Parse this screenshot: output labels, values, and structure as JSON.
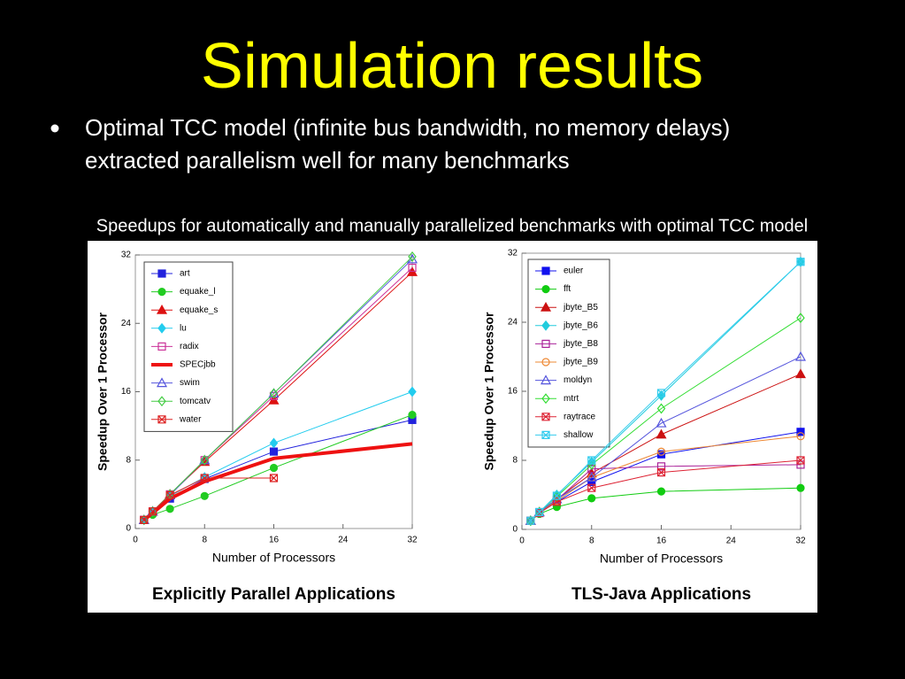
{
  "title": "Simulation results",
  "bullet": {
    "lines": [
      "Optimal TCC model (infinite bus bandwidth, no memory delays)",
      "extracted parallelism well for many benchmarks"
    ]
  },
  "caption": "Speedups for automatically and manually parallelized benchmarks with optimal TCC model",
  "chart_data": [
    {
      "type": "line",
      "title": "Explicitly Parallel Applications",
      "x_label": "Number of Processors",
      "y_label": "Speedup Over 1 Processor",
      "x": [
        1,
        2,
        4,
        8,
        16,
        32
      ],
      "xlim": [
        0,
        32
      ],
      "xticks": [
        0,
        8,
        16,
        24,
        32
      ],
      "ylim": [
        0,
        32
      ],
      "yticks": [
        0,
        8,
        16,
        24,
        32
      ],
      "series": [
        {
          "name": "art",
          "color": "#2222dd",
          "marker": "square",
          "values": [
            1,
            1.9,
            3.5,
            5.8,
            9,
            12.7
          ]
        },
        {
          "name": "equake_l",
          "color": "#22cc22",
          "marker": "circle",
          "values": [
            1,
            1.6,
            2.3,
            3.8,
            7.1,
            13.3
          ]
        },
        {
          "name": "equake_s",
          "color": "#dd1111",
          "marker": "triangle",
          "values": [
            1,
            2,
            4,
            7.8,
            15,
            30
          ]
        },
        {
          "name": "lu",
          "color": "#22ccee",
          "marker": "diamond",
          "values": [
            1,
            2,
            3.8,
            6,
            10,
            16
          ]
        },
        {
          "name": "radix",
          "color": "#cc3399",
          "marker": "square-open",
          "values": [
            1,
            2,
            4,
            8,
            15.5,
            30.5
          ]
        },
        {
          "name": "SPECjbb",
          "color": "#ee1111",
          "marker": "none",
          "width": 4,
          "values": [
            1,
            1.8,
            3.5,
            5.5,
            8.2,
            9.9
          ]
        },
        {
          "name": "swim",
          "color": "#5555dd",
          "marker": "triangle-open",
          "values": [
            1,
            2,
            3.9,
            8,
            15.8,
            31.5
          ]
        },
        {
          "name": "tomcatv",
          "color": "#44cc44",
          "marker": "diamond-open",
          "values": [
            1,
            2,
            4,
            8,
            15.8,
            31.8
          ]
        },
        {
          "name": "water",
          "color": "#dd2222",
          "marker": "x-box",
          "values": [
            1,
            2,
            3.9,
            5.9,
            5.9,
            null
          ]
        }
      ]
    },
    {
      "type": "line",
      "title": "TLS-Java Applications",
      "x_label": "Number of Processors",
      "y_label": "Speedup Over 1 Processor",
      "x": [
        1,
        2,
        4,
        8,
        16,
        32
      ],
      "xlim": [
        0,
        32
      ],
      "xticks": [
        0,
        8,
        16,
        24,
        32
      ],
      "ylim": [
        0,
        32
      ],
      "yticks": [
        0,
        8,
        16,
        24,
        32
      ],
      "series": [
        {
          "name": "euler",
          "color": "#1111ee",
          "marker": "square",
          "values": [
            1,
            1.9,
            3.2,
            5.5,
            8.7,
            11.3
          ]
        },
        {
          "name": "fft",
          "color": "#11cc11",
          "marker": "circle",
          "values": [
            1,
            1.8,
            2.6,
            3.6,
            4.4,
            4.8
          ]
        },
        {
          "name": "jbyte_B5",
          "color": "#cc1111",
          "marker": "triangle",
          "values": [
            1,
            2,
            3.5,
            6.5,
            11,
            18
          ]
        },
        {
          "name": "jbyte_B6",
          "color": "#22ccdd",
          "marker": "diamond",
          "values": [
            1,
            2,
            4,
            7.8,
            15.5,
            31
          ]
        },
        {
          "name": "jbyte_B8",
          "color": "#aa2299",
          "marker": "square-open",
          "values": [
            1,
            2,
            3.4,
            7,
            7.3,
            7.5
          ]
        },
        {
          "name": "jbyte_B9",
          "color": "#ee8833",
          "marker": "circle-open",
          "values": [
            1,
            2,
            3.3,
            6,
            9,
            10.8
          ]
        },
        {
          "name": "moldyn",
          "color": "#5555dd",
          "marker": "triangle-open",
          "values": [
            1,
            2,
            3.5,
            6,
            12.3,
            20
          ]
        },
        {
          "name": "mtrt",
          "color": "#33dd33",
          "marker": "diamond-open",
          "values": [
            1,
            2,
            3.8,
            7.5,
            14,
            24.5
          ]
        },
        {
          "name": "raytrace",
          "color": "#dd2233",
          "marker": "x-box",
          "values": [
            1,
            1.9,
            3.2,
            4.8,
            6.6,
            8
          ]
        },
        {
          "name": "shallow",
          "color": "#33ccee",
          "marker": "x-box",
          "values": [
            1,
            2,
            3.9,
            8,
            15.8,
            31
          ]
        }
      ]
    }
  ]
}
